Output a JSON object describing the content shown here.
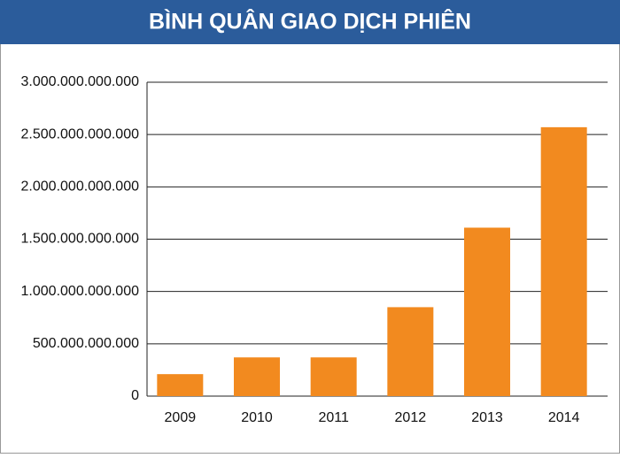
{
  "chart_data": {
    "type": "bar",
    "title": "BÌNH QUÂN GIAO DỊCH PHIÊN",
    "categories": [
      "2009",
      "2010",
      "2011",
      "2012",
      "2013",
      "2014"
    ],
    "values": [
      210000000000,
      370000000000,
      370000000000,
      850000000000,
      1610000000000,
      2570000000000
    ],
    "color": "#f28a1f",
    "ylim": [
      0,
      3000000000000
    ],
    "yticks": [
      0,
      {
        "value": 500000000000,
        "label": "500.000.000.000"
      },
      {
        "value": 1000000000000,
        "label": "1.000.000.000.000"
      },
      {
        "value": 1500000000000,
        "label": "1.500.000.000.000"
      },
      {
        "value": 2000000000000,
        "label": "2.000.000.000.000"
      },
      {
        "value": 2500000000000,
        "label": "2.500.000.000.000"
      },
      {
        "value": 3000000000000,
        "label": "3.000.000.000.000"
      }
    ],
    "grid": true
  }
}
